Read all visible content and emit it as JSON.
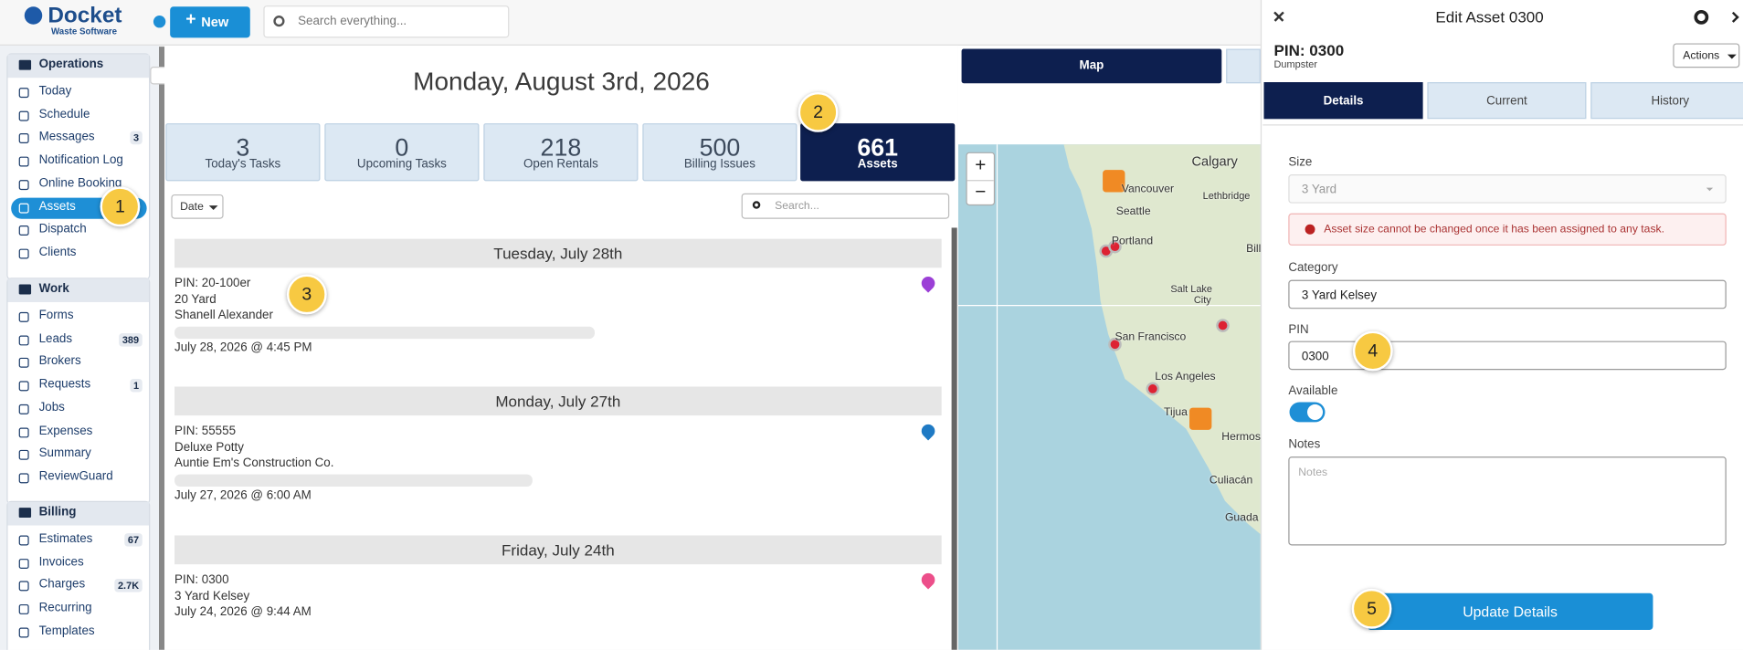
{
  "header": {
    "logo": "Docket",
    "logo_sub": "Waste Software",
    "new_button": "New",
    "search_placeholder": "Search everything..."
  },
  "sidebar": {
    "sections": [
      {
        "title": "Operations",
        "items": [
          {
            "label": "Today"
          },
          {
            "label": "Schedule"
          },
          {
            "label": "Messages",
            "badge": "3"
          },
          {
            "label": "Notification Log"
          },
          {
            "label": "Online Booking"
          },
          {
            "label": "Assets",
            "active": true
          },
          {
            "label": "Dispatch"
          },
          {
            "label": "Clients"
          }
        ]
      },
      {
        "title": "Work",
        "items": [
          {
            "label": "Forms"
          },
          {
            "label": "Leads",
            "badge": "389"
          },
          {
            "label": "Brokers"
          },
          {
            "label": "Requests",
            "badge": "1"
          },
          {
            "label": "Jobs"
          },
          {
            "label": "Expenses"
          },
          {
            "label": "Summary"
          },
          {
            "label": "ReviewGuard"
          }
        ]
      },
      {
        "title": "Billing",
        "items": [
          {
            "label": "Estimates",
            "badge": "67"
          },
          {
            "label": "Invoices"
          },
          {
            "label": "Charges",
            "badge": "2.7K"
          },
          {
            "label": "Recurring"
          },
          {
            "label": "Templates"
          }
        ]
      }
    ]
  },
  "main": {
    "title": "Monday, August 3rd, 2026",
    "cards": [
      {
        "value": "3",
        "label": "Today's Tasks"
      },
      {
        "value": "0",
        "label": "Upcoming Tasks"
      },
      {
        "value": "218",
        "label": "Open Rentals"
      },
      {
        "value": "500",
        "label": "Billing Issues"
      },
      {
        "value": "661",
        "label": "Assets",
        "active": true
      }
    ],
    "filter": "Date",
    "search_placeholder": "Search...",
    "groups": [
      {
        "date": "Tuesday, July 28th",
        "items": [
          {
            "lines": [
              "PIN: 20-100er",
              "20 Yard",
              "Shanell Alexander"
            ],
            "time": "July 28, 2026 @ 4:45 PM",
            "pin_color": "#9b3fd6"
          }
        ]
      },
      {
        "date": "Monday, July 27th",
        "items": [
          {
            "lines": [
              "PIN: 55555",
              "Deluxe Potty",
              "Auntie Em's Construction Co."
            ],
            "time": "July 27, 2026 @ 6:00 AM",
            "pin_color": "#1f7ac4"
          }
        ]
      },
      {
        "date": "Friday, July 24th",
        "items": [
          {
            "lines": [
              "PIN: 0300",
              "3 Yard Kelsey"
            ],
            "time": "July 24, 2026 @ 9:44 AM",
            "pin_color": "#ec4f8a"
          }
        ]
      }
    ]
  },
  "map": {
    "tab": "Map",
    "zoom_in": "+",
    "zoom_out": "−",
    "cities": [
      "Calgary",
      "Vancouver",
      "Seattle",
      "Lethbridge",
      "Portland",
      "Bill",
      "Salt Lake",
      "City",
      "San Francisco",
      "Los Angeles",
      "Tijua",
      "Hermos",
      "Culiacán",
      "Guada"
    ]
  },
  "panel": {
    "title": "Edit Asset 0300",
    "pin": "PIN: 0300",
    "type": "Dumpster",
    "actions": "Actions",
    "tabs": [
      "Details",
      "Current",
      "History"
    ],
    "size_label": "Size",
    "size_value": "3 Yard",
    "error": "Asset size cannot be changed once it has been assigned to any task.",
    "category_label": "Category",
    "category_value": "3 Yard Kelsey",
    "pin_label": "PIN",
    "pin_value": "0300",
    "available_label": "Available",
    "notes_label": "Notes",
    "notes_placeholder": "Notes",
    "button": "Update Details"
  },
  "annotations": [
    "1",
    "2",
    "3",
    "4",
    "5"
  ]
}
